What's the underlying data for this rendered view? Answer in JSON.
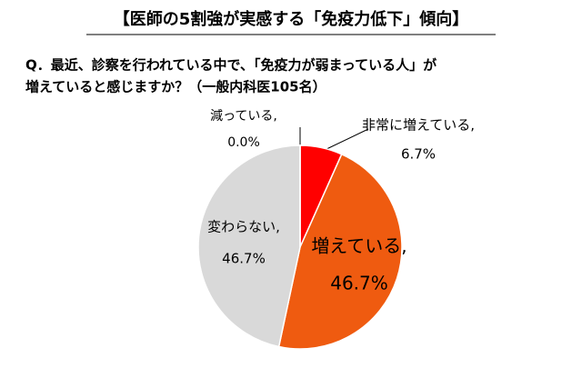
{
  "chart_data": {
    "type": "pie",
    "title": "【医師の5割強が実感する「免疫力低下」傾向】",
    "subtitle": [
      "Q．最近、診察を行われている中で、「免疫力が弱まっている人」が",
      "増えていると感じますか？（一般内科医105名）"
    ],
    "categories": [
      "非常に増えている,",
      "増えている,",
      "変わらない,",
      "減っている,"
    ],
    "values": [
      6.7,
      46.7,
      46.7,
      0.0
    ],
    "value_labels": [
      "6.7%",
      "46.7%",
      "46.7%",
      "0.0%"
    ],
    "colors": [
      "#ff0000",
      "#ef5b10",
      "#d9d9d9",
      "#bfbfbf"
    ]
  }
}
